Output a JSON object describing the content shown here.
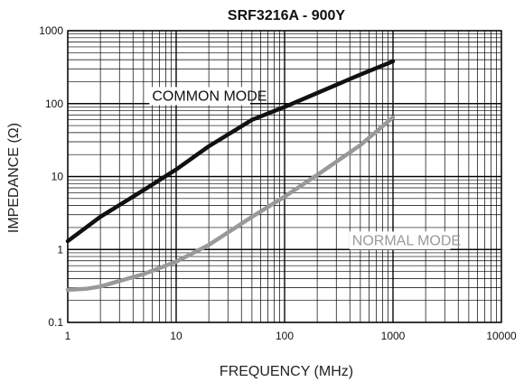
{
  "chart_data": {
    "type": "line",
    "title": "SRF3216A - 900Y",
    "xlabel": "FREQUENCY (MHz)",
    "ylabel": "IMPEDANCE (Ω)",
    "xscale": "log",
    "yscale": "log",
    "xlim": [
      1,
      10000
    ],
    "ylim": [
      0.1,
      1000
    ],
    "x_ticks": [
      "1",
      "10",
      "100",
      "1000",
      "10000"
    ],
    "y_ticks": [
      "0.1",
      "1",
      "10",
      "100",
      "1000"
    ],
    "grid": true,
    "series": [
      {
        "name": "COMMON MODE",
        "color": "#111111",
        "x": [
          1,
          2,
          5,
          10,
          20,
          50,
          100,
          200,
          500,
          1000
        ],
        "y": [
          1.3,
          2.8,
          6.5,
          12.5,
          26,
          60,
          90,
          140,
          250,
          380
        ]
      },
      {
        "name": "NORMAL MODE",
        "color": "#999999",
        "x": [
          1,
          1.5,
          2,
          3,
          5,
          10,
          20,
          50,
          100,
          200,
          500,
          1000
        ],
        "y": [
          0.28,
          0.29,
          0.31,
          0.37,
          0.46,
          0.68,
          1.15,
          2.8,
          5.3,
          10.5,
          27,
          65
        ]
      }
    ],
    "annotations": [
      {
        "text": "COMMON MODE",
        "x": 6,
        "y": 110,
        "color": "#111111"
      },
      {
        "text": "NORMAL MODE",
        "x": 420,
        "y": 1.15,
        "color": "#999999"
      }
    ]
  }
}
